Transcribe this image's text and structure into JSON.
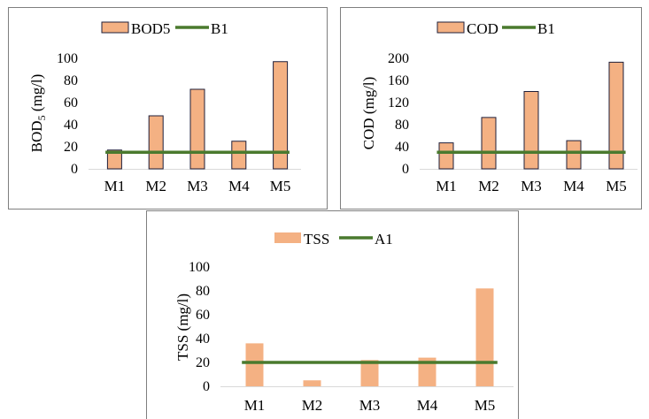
{
  "colors": {
    "bar": "#f4b183",
    "bar_edge": "#1f1f3a",
    "line": "#4a7a2e",
    "frame": "#7f7f7f",
    "axis": "#d9d9d9"
  },
  "chart_data": [
    {
      "type": "bar",
      "categories": [
        "M1",
        "M2",
        "M3",
        "M4",
        "M5"
      ],
      "series": [
        {
          "name": "BOD5",
          "kind": "bar",
          "values": [
            17,
            48,
            72,
            25,
            97
          ]
        },
        {
          "name": "B1",
          "kind": "line",
          "values": [
            15,
            15,
            15,
            15,
            15
          ]
        }
      ],
      "ylabel_main": "BOD",
      "ylabel_sub": "5",
      "ylabel_unit": " (mg/l)",
      "ylim": [
        0,
        100
      ],
      "yticks": [
        0,
        20,
        40,
        60,
        80,
        100
      ],
      "legend_position": "top-center",
      "bar_outline": true
    },
    {
      "type": "bar",
      "categories": [
        "M1",
        "M2",
        "M3",
        "M4",
        "M5"
      ],
      "series": [
        {
          "name": "COD",
          "kind": "bar",
          "values": [
            47,
            93,
            140,
            51,
            193
          ]
        },
        {
          "name": "B1",
          "kind": "line",
          "values": [
            30,
            30,
            30,
            30,
            30
          ]
        }
      ],
      "ylabel_main": "COD (mg/l)",
      "ylabel_sub": "",
      "ylabel_unit": "",
      "ylim": [
        0,
        200
      ],
      "yticks": [
        0,
        40,
        80,
        120,
        160,
        200
      ],
      "legend_position": "top-center",
      "bar_outline": true
    },
    {
      "type": "bar",
      "categories": [
        "M1",
        "M2",
        "M3",
        "M4",
        "M5"
      ],
      "series": [
        {
          "name": "TSS",
          "kind": "bar",
          "values": [
            36,
            5,
            22,
            24,
            82
          ]
        },
        {
          "name": "A1",
          "kind": "line",
          "values": [
            20,
            20,
            20,
            20,
            20
          ]
        }
      ],
      "ylabel_main": "TSS (mg/l)",
      "ylabel_sub": "",
      "ylabel_unit": "",
      "ylim": [
        0,
        100
      ],
      "yticks": [
        0,
        20,
        40,
        60,
        80,
        100
      ],
      "legend_position": "top-center",
      "bar_outline": false
    }
  ]
}
